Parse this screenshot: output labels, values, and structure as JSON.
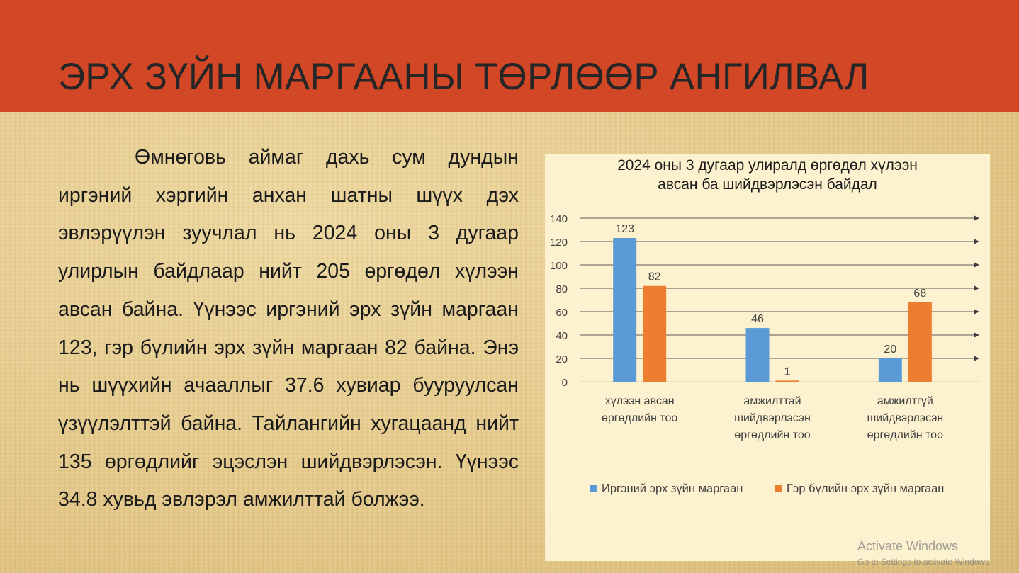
{
  "slide": {
    "title": "ЭРХ ЗҮЙН МАРГААНЫ ТӨРЛӨӨР АНГИЛВАЛ",
    "paragraph": "Өмнөговь аймаг дахь сум дундын иргэний хэргийн анхан шатны шүүх дэх эвлэрүүлэн зуучлал нь 2024 оны 3 дугаар улирлын байдлаар нийт 205 өргөдөл хүлээн авсан байна. Үүнээс иргэний эрх зүйн маргаан 123, гэр бүлийн эрх зүйн маргаан 82 байна. Энэ нь шүүхийн ачааллыг 37.6 хувиар бууруулсан үзүүлэлттэй байна. Тайлангийн хугацаанд нийт 135 өргөдлийг эцэслэн шийдвэрлэсэн. Үүнээс 34.8 хувьд эвлэрэл амжилттай болжээ.",
    "header_color": "#d24726"
  },
  "chart_data": {
    "type": "bar",
    "title_lines": [
      "2024 оны 3 дугаар улиралд өргөдөл хүлээн",
      "авсан ба шийдвэрлэсэн байдал"
    ],
    "categories": [
      [
        "хүлээн авсан",
        "өргөдлийн тоо"
      ],
      [
        "амжилттай",
        "шийдвэрлэсэн",
        "өргөдлийн тоо"
      ],
      [
        "амжилтгүй",
        "шийдвэрлэсэн",
        "өргөдлийн тоо"
      ]
    ],
    "series": [
      {
        "name": "Иргэний эрх зүйн маргаан",
        "values": [
          123,
          46,
          20
        ],
        "color": "#5b9bd5"
      },
      {
        "name": "Гэр бүлийн эрх зүйн маргаан",
        "values": [
          82,
          1,
          68
        ],
        "color": "#ed7d31"
      }
    ],
    "ylim": [
      0,
      140
    ],
    "yticks": [
      0,
      20,
      40,
      60,
      80,
      100,
      120,
      140
    ],
    "grid": true,
    "legend": "bottom"
  },
  "watermark": {
    "line1": "Activate Windows",
    "line2": "Go to Settings to activate Windows."
  }
}
